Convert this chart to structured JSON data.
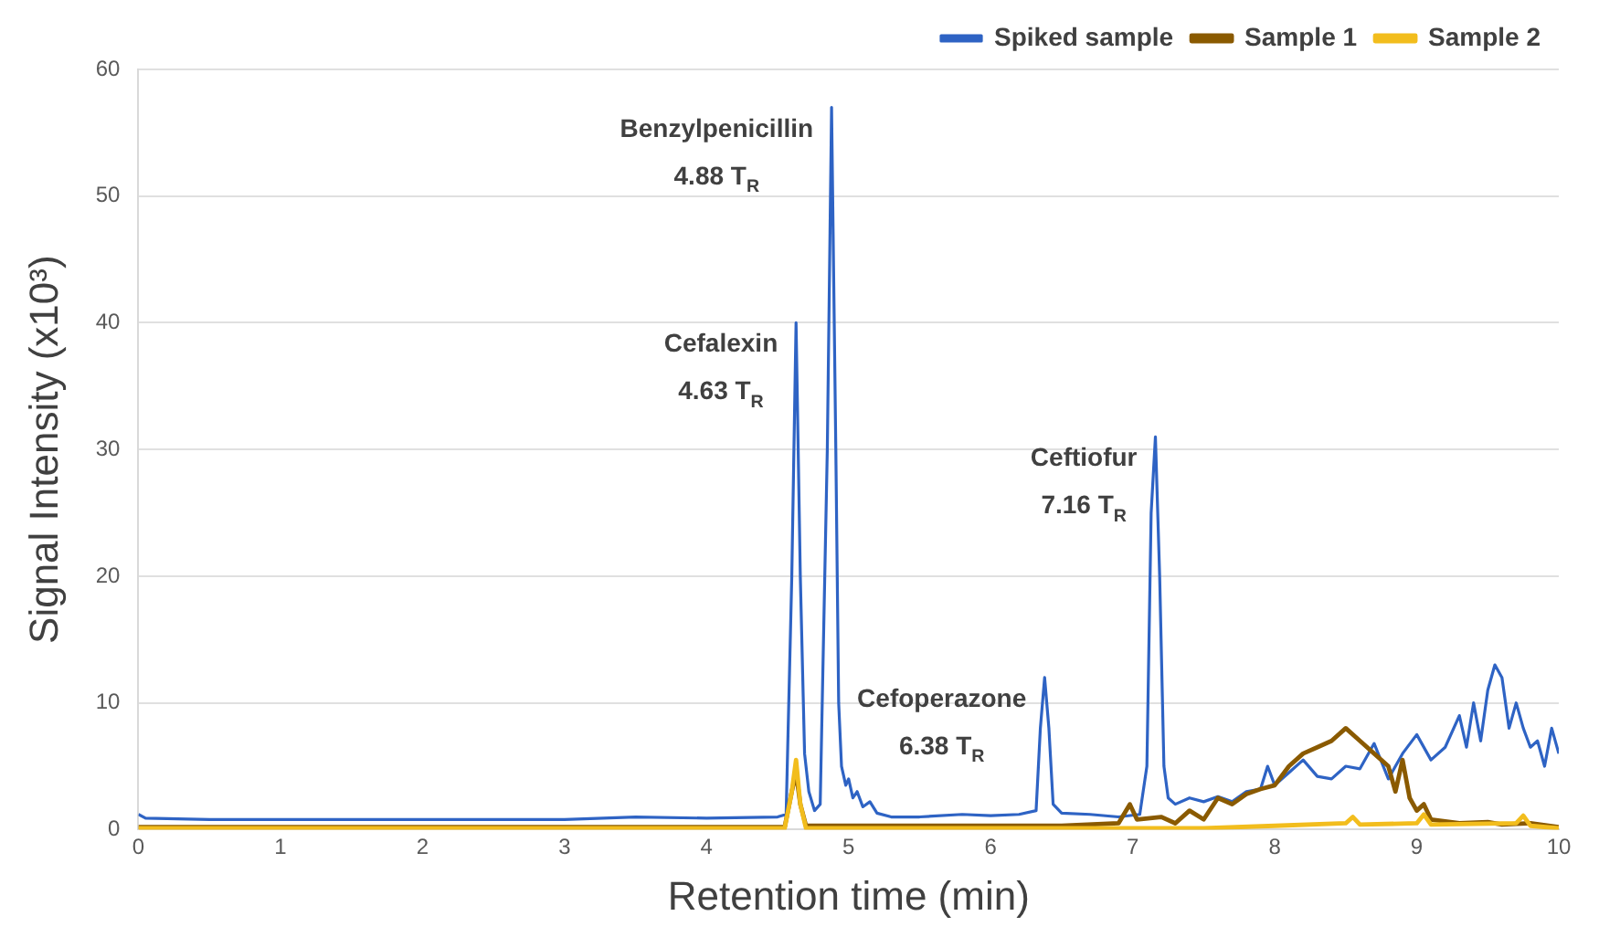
{
  "chart_data": {
    "type": "line",
    "xlabel": "Retention time (min)",
    "ylabel": "Signal Intensity (x10³)",
    "xlim": [
      0,
      10
    ],
    "xticks": [
      0,
      1,
      2,
      3,
      4,
      5,
      6,
      7,
      8,
      9,
      10
    ],
    "ylim": [
      0,
      60
    ],
    "yticks": [
      0,
      10,
      20,
      30,
      40,
      50,
      60
    ],
    "grid": "y",
    "legend": "top right",
    "marker": "none",
    "line_style": "solid",
    "annotations": [
      {
        "text": "Benzylpenicillin\n4.88 T$_{R}$",
        "x": 4.88,
        "y": 57
      },
      {
        "text": "Cefalexin\n4.63 T$_{R}$",
        "x": 4.63,
        "y": 40
      },
      {
        "text": "Cefoperazone\n6.38 T$_{R}$",
        "x": 6.38,
        "y": 12
      },
      {
        "text": "Ceftiofur\n7.16 T$_{R}$",
        "x": 7.16,
        "y": 31
      }
    ],
    "series": [
      {
        "name": "Spiked sample",
        "color": "#2e63c4",
        "x": [
          0,
          0.05,
          0.5,
          1,
          2,
          3,
          3.5,
          4,
          4.5,
          4.56,
          4.6,
          4.63,
          4.66,
          4.69,
          4.72,
          4.76,
          4.8,
          4.85,
          4.88,
          4.91,
          4.93,
          4.95,
          4.98,
          5,
          5.03,
          5.06,
          5.1,
          5.15,
          5.2,
          5.3,
          5.5,
          5.8,
          6,
          6.2,
          6.32,
          6.35,
          6.38,
          6.41,
          6.44,
          6.5,
          6.7,
          6.9,
          7.05,
          7.1,
          7.13,
          7.16,
          7.19,
          7.22,
          7.25,
          7.3,
          7.4,
          7.5,
          7.6,
          7.7,
          7.8,
          7.9,
          7.95,
          8,
          8.1,
          8.2,
          8.3,
          8.4,
          8.5,
          8.6,
          8.7,
          8.8,
          8.9,
          9,
          9.1,
          9.2,
          9.3,
          9.35,
          9.4,
          9.45,
          9.5,
          9.55,
          9.6,
          9.65,
          9.7,
          9.75,
          9.8,
          9.85,
          9.9,
          9.95,
          10
        ],
        "values": [
          1.2,
          0.9,
          0.8,
          0.8,
          0.8,
          0.8,
          1,
          0.9,
          1,
          1.2,
          20,
          40,
          20,
          6,
          3,
          1.5,
          2,
          30,
          57,
          30,
          10,
          5,
          3.5,
          4,
          2.5,
          3,
          1.8,
          2.2,
          1.3,
          1,
          1,
          1.2,
          1.1,
          1.2,
          1.5,
          8,
          12,
          8,
          2,
          1.3,
          1.2,
          1,
          1.2,
          5,
          25,
          31,
          20,
          5,
          2.5,
          2,
          2.5,
          2.2,
          2.6,
          2.2,
          3,
          3.2,
          5,
          3.5,
          4.5,
          5.5,
          4.2,
          4,
          5,
          4.8,
          6.8,
          4,
          6,
          7.5,
          5.5,
          6.5,
          9,
          6.5,
          10,
          7,
          11,
          13,
          12,
          8,
          10,
          8,
          6.5,
          7,
          5,
          8,
          6
        ]
      },
      {
        "name": "Sample 1",
        "color": "#8a5a00",
        "x": [
          0,
          4.55,
          4.6,
          4.63,
          4.66,
          4.7,
          6.5,
          6.9,
          6.98,
          7.03,
          7.2,
          7.3,
          7.4,
          7.5,
          7.6,
          7.7,
          7.8,
          7.9,
          8,
          8.1,
          8.2,
          8.3,
          8.4,
          8.5,
          8.6,
          8.7,
          8.8,
          8.85,
          8.9,
          8.95,
          9,
          9.05,
          9.1,
          9.3,
          9.5,
          9.6,
          9.8,
          10
        ],
        "values": [
          0.2,
          0.2,
          3,
          4.5,
          2,
          0.3,
          0.3,
          0.5,
          2,
          0.8,
          1,
          0.5,
          1.5,
          0.8,
          2.5,
          2,
          2.8,
          3.2,
          3.5,
          5,
          6,
          6.5,
          7,
          8,
          7,
          6,
          5,
          3,
          5.5,
          2.5,
          1.5,
          2,
          0.8,
          0.5,
          0.6,
          0.4,
          0.5,
          0.2
        ]
      },
      {
        "name": "Sample 2",
        "color": "#f2bd1d",
        "x": [
          0,
          4.55,
          4.6,
          4.63,
          4.66,
          4.7,
          7.5,
          8,
          8.5,
          8.55,
          8.6,
          9,
          9.05,
          9.1,
          9.7,
          9.75,
          9.8,
          10
        ],
        "values": [
          0.1,
          0.1,
          3,
          5.5,
          2,
          0.1,
          0.1,
          0.3,
          0.5,
          1,
          0.4,
          0.5,
          1.2,
          0.4,
          0.5,
          1.1,
          0.3,
          0.1
        ]
      }
    ]
  }
}
